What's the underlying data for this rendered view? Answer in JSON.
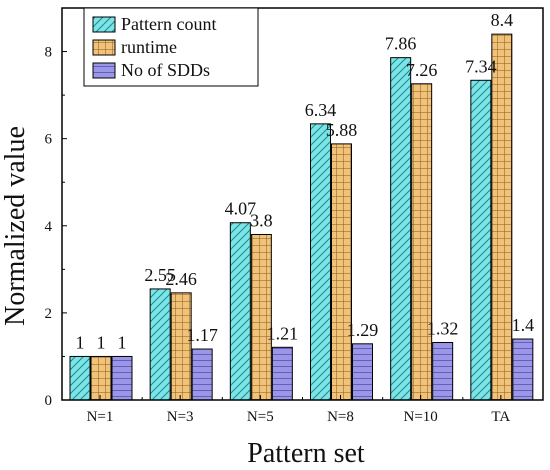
{
  "chart_data": {
    "type": "bar",
    "title": "",
    "xlabel": "Pattern set",
    "ylabel": "Normalized value",
    "categories": [
      "N=1",
      "N=3",
      "N=5",
      "N=8",
      "N=10",
      "TA"
    ],
    "ylim": [
      0,
      9
    ],
    "yticks": [
      0,
      2,
      4,
      6,
      8
    ],
    "grid": false,
    "legend_position": "top-left",
    "series": [
      {
        "name": "Pattern count",
        "values": [
          1,
          2.55,
          4.07,
          6.34,
          7.86,
          7.34
        ],
        "data_labels": [
          "1",
          "2.55",
          "4.07",
          "6.34",
          "7.86",
          "7.34"
        ],
        "color": "#7fe3e5",
        "pattern": "diagonal-hatch"
      },
      {
        "name": "runtime",
        "values": [
          1,
          2.46,
          3.8,
          5.88,
          7.26,
          8.4
        ],
        "data_labels": [
          "1",
          "2.46",
          "3.8",
          "5.88",
          "7.26",
          "8.4"
        ],
        "color": "#f0c27a",
        "pattern": "grid-hatch"
      },
      {
        "name": "No of SDDs",
        "values": [
          1,
          1.17,
          1.21,
          1.29,
          1.32,
          1.4
        ],
        "data_labels": [
          "1",
          "1.17",
          "1.21",
          "1.29",
          "1.32",
          "1.4"
        ],
        "color": "#9b96e8",
        "pattern": "horizontal-hatch"
      }
    ]
  }
}
